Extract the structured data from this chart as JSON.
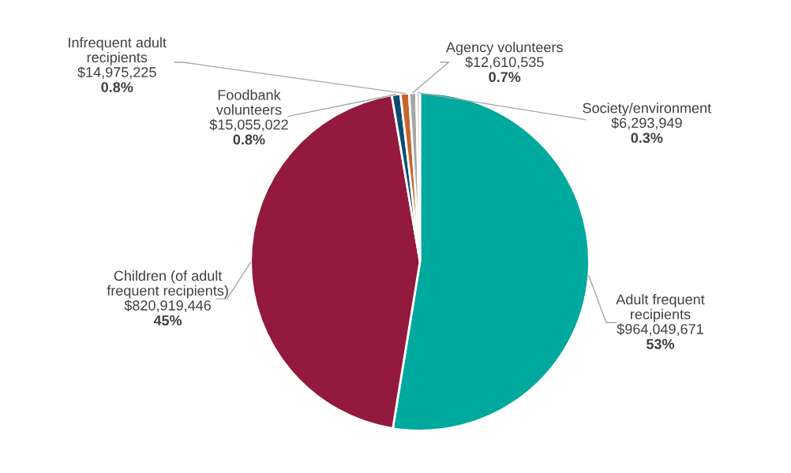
{
  "chart_data": {
    "type": "pie",
    "categories": [
      "Adult frequent recipients",
      "Children (of adult frequent recipients)",
      "Foodbank volunteers",
      "Infrequent adult recipients",
      "Agency volunteers",
      "Society/environment"
    ],
    "values": [
      964049671,
      820919446,
      15055022,
      14975225,
      12610535,
      6293949
    ],
    "value_labels": [
      "$964,049,671\n53%",
      "$820,919,446\n45%",
      "$15,055,022\n0.8%",
      "$14,975,225\n0.8%",
      "$12,610,535\n0.7%",
      "$6,293,949\n0.3%"
    ],
    "colors": [
      "#00a99d",
      "#93193e",
      "#0e4c6e",
      "#c8642a",
      "#a6a6a6",
      "#d0d0d0"
    ],
    "legend": false
  }
}
